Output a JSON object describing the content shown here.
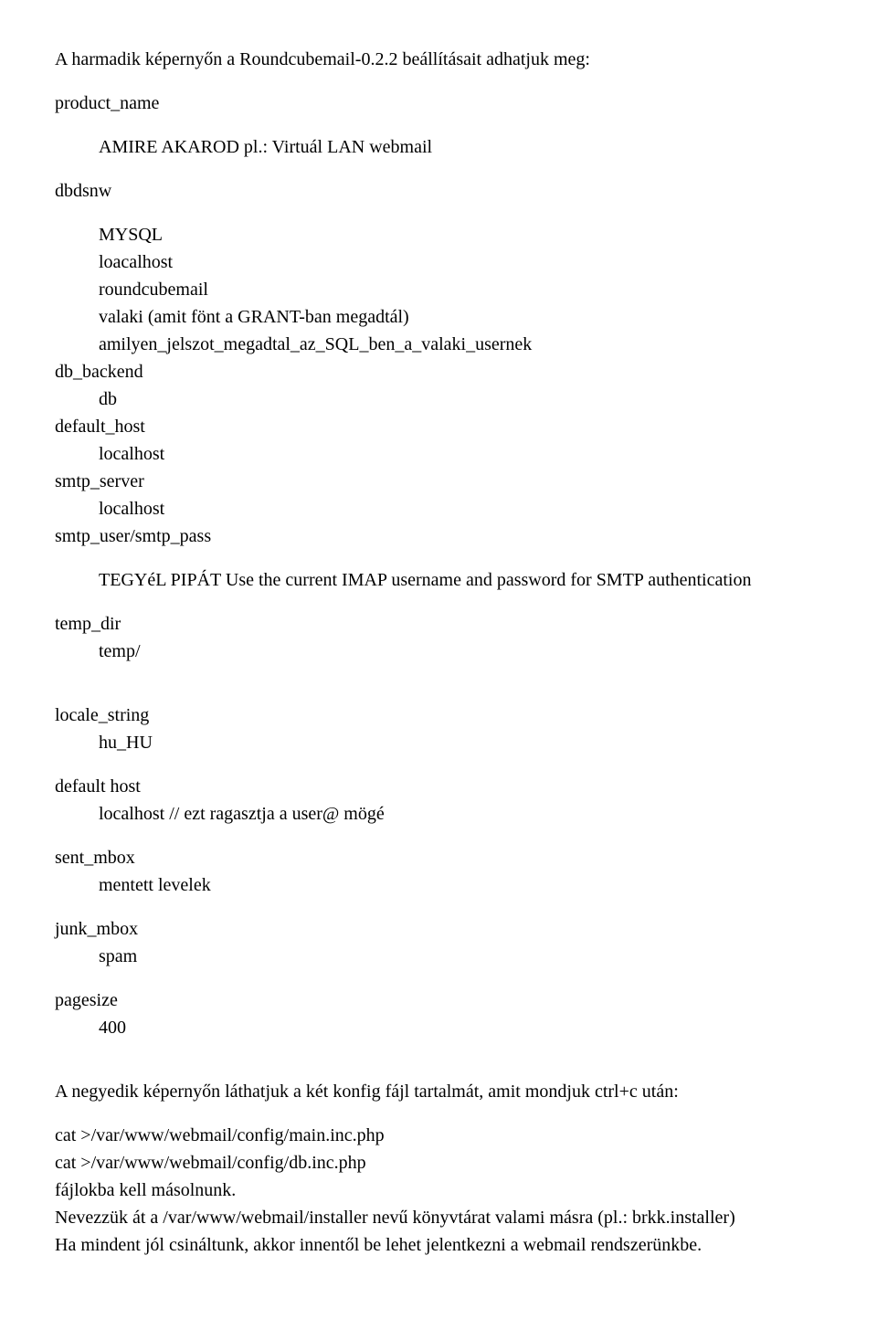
{
  "intro": "A harmadik képernyőn a Roundcubemail-0.2.2 beállításait adhatjuk meg:",
  "product_name_label": "product_name",
  "product_name_value": "AMIRE AKAROD pl.: Virtuál LAN webmail",
  "dbdsnw_label": "dbdsnw",
  "db_lines": {
    "mysql": "MYSQL",
    "loacalhost": "loacalhost",
    "roundcubemail": "roundcubemail",
    "valaki": "valaki (amit fönt a GRANT-ban megadtál)",
    "amilyen": "amilyen_jelszot_megadtal_az_SQL_ben_a_valaki_usernek"
  },
  "db_backend_label": "db_backend",
  "db_backend_value": "db",
  "default_host_label": "default_host",
  "default_host_value": "localhost",
  "smtp_server_label": "smtp_server",
  "smtp_server_value": "localhost",
  "smtp_user_label": "smtp_user/smtp_pass",
  "smtp_user_note": "TEGYéL PIPÁT Use the current IMAP username and password for SMTP authentication",
  "temp_dir_label": "temp_dir",
  "temp_dir_value": "temp/",
  "locale_string_label": "locale_string",
  "locale_string_value": "hu_HU",
  "default_host2_label": "default host",
  "default_host2_value": "localhost  // ezt ragasztja a user@ mögé",
  "sent_mbox_label": "sent_mbox",
  "sent_mbox_value": "mentett levelek",
  "junk_mbox_label": "junk_mbox",
  "junk_mbox_value": "spam",
  "pagesize_label": "pagesize",
  "pagesize_value": "400",
  "fourth_screen": "A negyedik képernyőn láthatjuk a két konfig fájl tartalmát, amit mondjuk ctrl+c után:",
  "cat1": "cat >/var/www/webmail/config/main.inc.php",
  "cat2": "cat >/var/www/webmail/config/db.inc.php",
  "copy_note": "fájlokba kell másolnunk.",
  "rename_note": "Nevezzük át a /var/www/webmail/installer nevű könyvtárat valami másra (pl.: brkk.installer)",
  "final_note": "Ha mindent jól csináltunk, akkor innentől be lehet jelentkezni a webmail rendszerünkbe."
}
